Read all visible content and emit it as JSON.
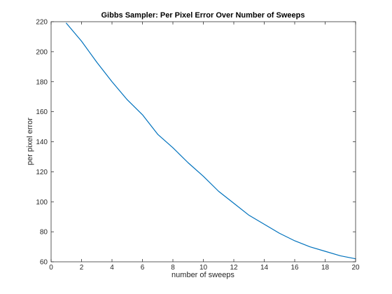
{
  "chart_data": {
    "type": "line",
    "title": "Gibbs Sampler: Per Pixel Error Over Number of Sweeps",
    "xlabel": "number of sweeps",
    "ylabel": "per pixel error",
    "xlim": [
      0,
      20
    ],
    "ylim": [
      60,
      220
    ],
    "xticks": [
      0,
      2,
      4,
      6,
      8,
      10,
      12,
      14,
      16,
      18,
      20
    ],
    "yticks": [
      60,
      80,
      100,
      120,
      140,
      160,
      180,
      200,
      220
    ],
    "grid": false,
    "series": [
      {
        "color": "#0072BD",
        "x": [
          1,
          2,
          3,
          4,
          5,
          6,
          7,
          8,
          9,
          10,
          11,
          12,
          13,
          14,
          15,
          16,
          17,
          18,
          19,
          20
        ],
        "y": [
          219,
          207,
          193,
          180,
          168,
          158,
          145,
          136,
          126,
          117,
          107,
          99,
          91,
          85,
          79,
          74,
          70,
          67,
          64,
          62
        ]
      }
    ]
  }
}
